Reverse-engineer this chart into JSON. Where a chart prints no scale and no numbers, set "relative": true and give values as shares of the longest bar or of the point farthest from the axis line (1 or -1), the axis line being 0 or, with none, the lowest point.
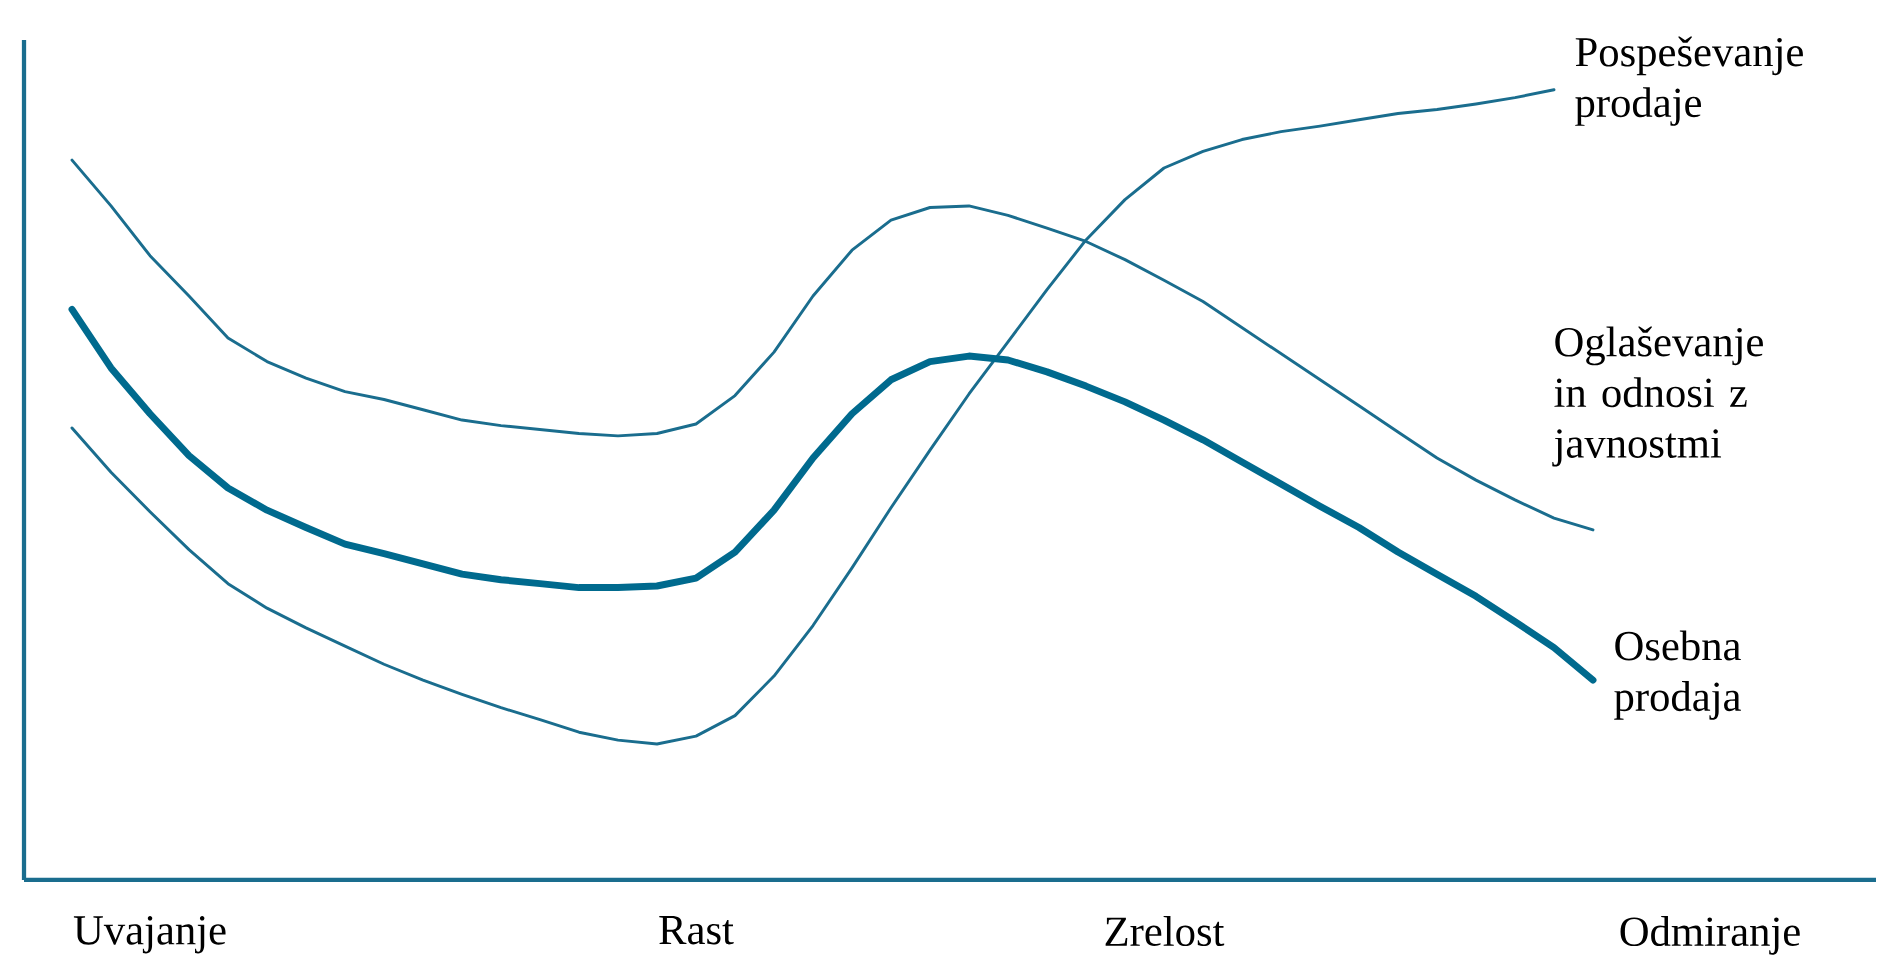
{
  "chart_data": {
    "type": "line",
    "relative": true,
    "line_style": "solid",
    "marker": "none",
    "grid": false,
    "legend": false,
    "categories": [
      null,
      null,
      "Uvajanje",
      null,
      null,
      null,
      null,
      null,
      null,
      null,
      null,
      null,
      null,
      null,
      null,
      null,
      "Rast",
      null,
      null,
      null,
      null,
      null,
      null,
      null,
      null,
      null,
      null,
      null,
      "Zrelost",
      null,
      null,
      null,
      null,
      null,
      null,
      null,
      null,
      null,
      null,
      null,
      null,
      null,
      "Odmiranje"
    ],
    "series": [
      {
        "name": "Pospeševanje prodaje",
        "color": "#1a6d8e",
        "values": [
          0.572,
          0.516,
          0.466,
          0.418,
          0.375,
          0.344,
          0.319,
          0.296,
          0.273,
          0.253,
          0.235,
          0.218,
          0.203,
          0.187,
          0.177,
          0.172,
          0.182,
          0.208,
          0.258,
          0.322,
          0.395,
          0.471,
          0.544,
          0.615,
          0.681,
          0.747,
          0.81,
          0.861,
          0.901,
          0.922,
          0.937,
          0.947,
          0.954,
          0.962,
          0.97,
          0.975,
          0.982,
          0.99,
          1.0,
          null,
          null,
          null,
          null
        ]
      },
      {
        "name": "Oglaševanje in odnosi z javnostmi",
        "color": "#1a6d8e",
        "values": [
          0.911,
          0.853,
          0.79,
          0.739,
          0.686,
          0.656,
          0.635,
          0.618,
          0.608,
          0.595,
          0.582,
          0.575,
          0.57,
          0.565,
          0.562,
          0.565,
          0.577,
          0.613,
          0.668,
          0.739,
          0.797,
          0.835,
          0.851,
          0.853,
          0.841,
          0.825,
          0.808,
          0.785,
          0.759,
          0.732,
          0.699,
          0.666,
          0.633,
          0.6,
          0.567,
          0.534,
          0.506,
          0.481,
          0.458,
          0.443,
          null,
          null,
          null
        ]
      },
      {
        "name": "Osebna prodaja",
        "color": "#006a8e",
        "values": [
          0.722,
          0.648,
          0.59,
          0.537,
          0.496,
          0.468,
          0.446,
          0.425,
          0.413,
          0.4,
          0.387,
          0.38,
          0.375,
          0.37,
          0.37,
          0.372,
          0.382,
          0.415,
          0.468,
          0.534,
          0.59,
          0.633,
          0.656,
          0.663,
          0.658,
          0.643,
          0.625,
          0.605,
          0.582,
          0.557,
          0.529,
          0.501,
          0.473,
          0.446,
          0.415,
          0.387,
          0.359,
          0.327,
          0.294,
          0.253,
          null,
          null,
          null
        ]
      }
    ]
  }
}
